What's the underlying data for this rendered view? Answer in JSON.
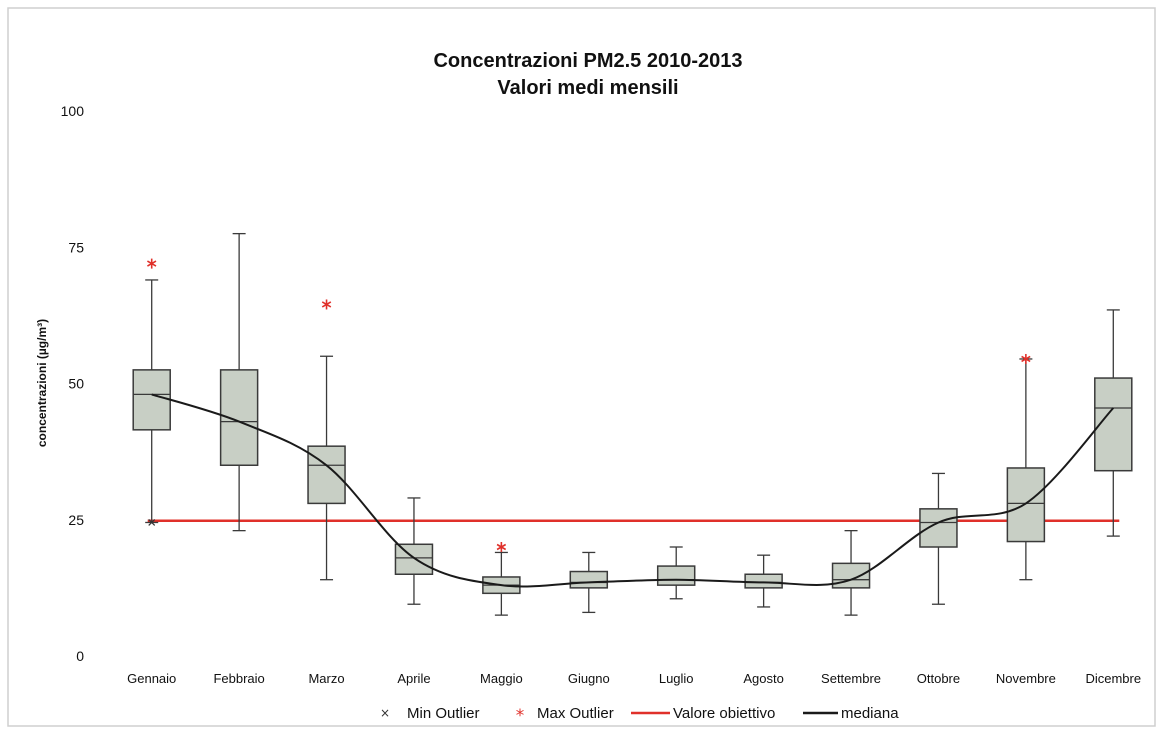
{
  "chart_data": {
    "type": "box",
    "title": "Concentrazioni PM2.5 2010-2013",
    "subtitle": "Valori medi mensili",
    "xlabel": "",
    "ylabel": "concentrazioni (µg/m³)",
    "ylim": [
      0,
      100
    ],
    "yticks": [
      "0",
      "25",
      "50",
      "75",
      "100"
    ],
    "grid": false,
    "legend_position": "bottom",
    "categories": [
      "Gennaio",
      "Febbraio",
      "Marzo",
      "Aprile",
      "Maggio",
      "Giugno",
      "Luglio",
      "Agosto",
      "Settembre",
      "Ottobre",
      "Novembre",
      "Dicembre"
    ],
    "boxes": [
      {
        "min": 24.5,
        "q1": 41.5,
        "median": 48,
        "q3": 52.5,
        "max": 69
      },
      {
        "min": 23,
        "q1": 35,
        "median": 43,
        "q3": 52.5,
        "max": 77.5
      },
      {
        "min": 14,
        "q1": 28,
        "median": 35,
        "q3": 38.5,
        "max": 55
      },
      {
        "min": 9.5,
        "q1": 15,
        "median": 18,
        "q3": 20.5,
        "max": 29
      },
      {
        "min": 7.5,
        "q1": 11.5,
        "median": 13,
        "q3": 14.5,
        "max": 19
      },
      {
        "min": 8,
        "q1": 12.5,
        "median": 13.5,
        "q3": 15.5,
        "max": 19
      },
      {
        "min": 10.5,
        "q1": 13,
        "median": 14,
        "q3": 16.5,
        "max": 20
      },
      {
        "min": 9,
        "q1": 12.5,
        "median": 13.5,
        "q3": 15,
        "max": 18.5
      },
      {
        "min": 7.5,
        "q1": 12.5,
        "median": 14,
        "q3": 17,
        "max": 23
      },
      {
        "min": 9.5,
        "q1": 20,
        "median": 24.5,
        "q3": 27,
        "max": 33.5
      },
      {
        "min": 14,
        "q1": 21,
        "median": 28,
        "q3": 34.5,
        "max": 54.5
      },
      {
        "min": 22,
        "q1": 34,
        "median": 45.5,
        "q3": 51,
        "max": 63.5
      }
    ],
    "max_outliers": [
      {
        "category": "Gennaio",
        "value": 72
      },
      {
        "category": "Marzo",
        "value": 64.5
      },
      {
        "category": "Maggio",
        "value": 20
      },
      {
        "category": "Novembre",
        "value": 54.5
      }
    ],
    "min_outliers": [
      {
        "category": "Gennaio",
        "value": 24.5
      }
    ],
    "valore_obiettivo": 25,
    "series_names": {
      "min_outlier": "Min Outlier",
      "max_outlier": "Max Outlier",
      "target": "Valore obiettivo",
      "median": "mediana"
    },
    "colors": {
      "box_fill": "#c8cfc5",
      "box_stroke": "#3a3a3a",
      "median_line": "#1a1a1a",
      "target_line": "#e0302a",
      "max_outlier": "#e0302a",
      "min_outlier": "#333333"
    }
  }
}
